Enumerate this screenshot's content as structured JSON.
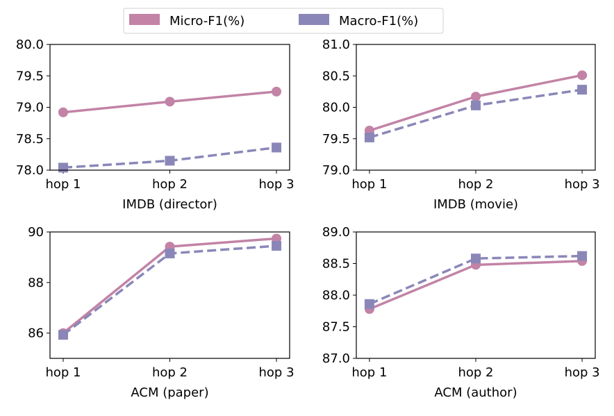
{
  "legend": {
    "items": [
      {
        "label": "Micro-F1(%)",
        "color": "#c283a6",
        "marker": "circle",
        "line": "solid"
      },
      {
        "label": "Macro-F1(%)",
        "color": "#8a87b8",
        "marker": "square",
        "line": "dashed"
      }
    ],
    "placement": "top-center"
  },
  "chart_data": [
    {
      "type": "line",
      "xlabel": "IMDB (director)",
      "categories": [
        "hop 1",
        "hop 2",
        "hop 3"
      ],
      "ylim": [
        78.0,
        80.0
      ],
      "yticks": [
        "78.0",
        "78.5",
        "79.0",
        "79.5",
        "80.0"
      ],
      "grid": false,
      "series": [
        {
          "name": "Micro-F1(%)",
          "values": [
            78.92,
            79.09,
            79.25
          ]
        },
        {
          "name": "Macro-F1(%)",
          "values": [
            78.04,
            78.15,
            78.36
          ]
        }
      ]
    },
    {
      "type": "line",
      "xlabel": "IMDB (movie)",
      "categories": [
        "hop 1",
        "hop 2",
        "hop 3"
      ],
      "ylim": [
        79.0,
        81.0
      ],
      "yticks": [
        "79.0",
        "79.5",
        "80.0",
        "80.5",
        "81.0"
      ],
      "grid": false,
      "series": [
        {
          "name": "Micro-F1(%)",
          "values": [
            79.63,
            80.17,
            80.51
          ]
        },
        {
          "name": "Macro-F1(%)",
          "values": [
            79.52,
            80.03,
            80.28
          ]
        }
      ]
    },
    {
      "type": "line",
      "xlabel": "ACM (paper)",
      "categories": [
        "hop 1",
        "hop 2",
        "hop 3"
      ],
      "ylim": [
        85.0,
        90.0
      ],
      "yticks": [
        "86",
        "88",
        "90"
      ],
      "grid": false,
      "series": [
        {
          "name": "Micro-F1(%)",
          "values": [
            86.0,
            89.42,
            89.74
          ]
        },
        {
          "name": "Macro-F1(%)",
          "values": [
            85.93,
            89.15,
            89.45
          ]
        }
      ]
    },
    {
      "type": "line",
      "xlabel": "ACM (author)",
      "categories": [
        "hop 1",
        "hop 2",
        "hop 3"
      ],
      "ylim": [
        87.0,
        89.0
      ],
      "yticks": [
        "87.0",
        "87.5",
        "88.0",
        "88.5",
        "89.0"
      ],
      "grid": false,
      "series": [
        {
          "name": "Micro-F1(%)",
          "values": [
            87.78,
            88.48,
            88.54
          ]
        },
        {
          "name": "Macro-F1(%)",
          "values": [
            87.86,
            88.58,
            88.62
          ]
        }
      ]
    }
  ]
}
